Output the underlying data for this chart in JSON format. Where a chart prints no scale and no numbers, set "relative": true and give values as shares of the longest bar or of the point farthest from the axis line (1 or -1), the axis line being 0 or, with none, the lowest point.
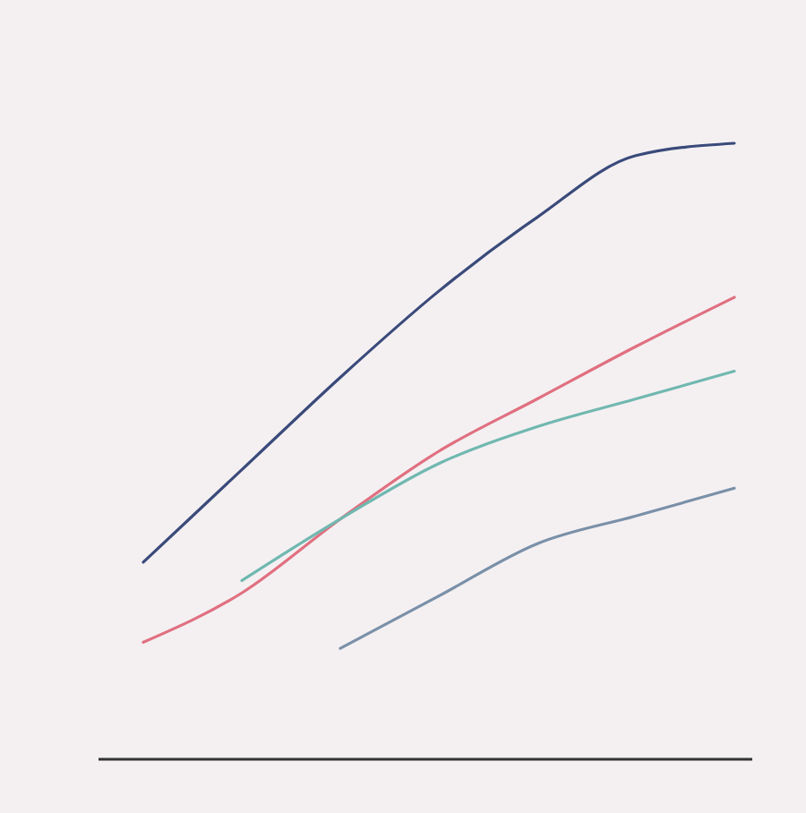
{
  "chart_data": {
    "type": "line",
    "relative": true,
    "categories": [
      null,
      null,
      null,
      null,
      null,
      null,
      null
    ],
    "series": [
      {
        "color": "#3a4a7a",
        "values": [
          0.32,
          0.47,
          0.62,
          0.76,
          0.88,
          0.98,
          1
        ]
      },
      {
        "color": "#e07080",
        "values": [
          0.19,
          0.27,
          0.39,
          0.5,
          0.585,
          0.67,
          0.75
        ]
      },
      {
        "color": "#70b8b0",
        "values": [
          null,
          0.29,
          0.39,
          0.48,
          0.54,
          0.585,
          0.63
        ]
      },
      {
        "color": "#7a90a8",
        "values": [
          null,
          null,
          0.18,
          0.265,
          0.35,
          0.395,
          0.44
        ]
      }
    ],
    "marker": "none",
    "line_style": "solid"
  }
}
